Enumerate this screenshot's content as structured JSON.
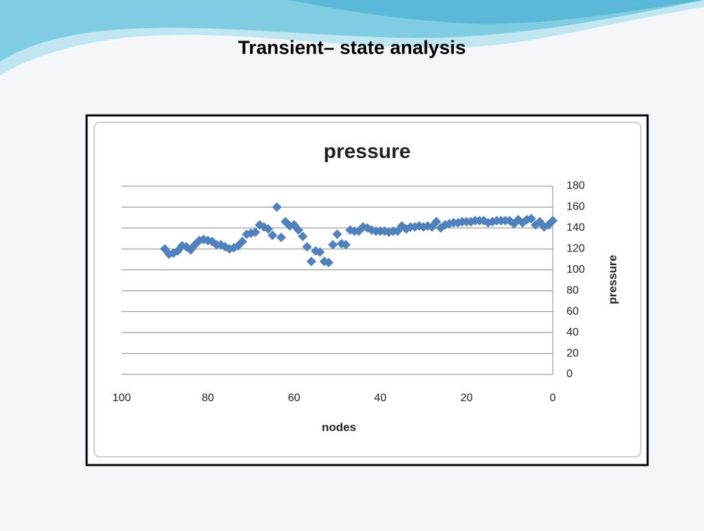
{
  "slide_title": "Transient– state analysis",
  "chart_data": {
    "type": "scatter",
    "title": "pressure",
    "x_label": "nodes",
    "y_label": "pressure",
    "color": "#4f81bd",
    "grid": true,
    "y_axis_side": "right",
    "x_reversed": true,
    "xlim": [
      100,
      0
    ],
    "xticks": [
      100,
      80,
      60,
      40,
      20,
      0
    ],
    "ylim": [
      0,
      180
    ],
    "yticks": [
      0,
      20,
      40,
      60,
      80,
      100,
      120,
      140,
      160,
      180
    ],
    "x": [
      90,
      89,
      88,
      87,
      86,
      85,
      84,
      83,
      82,
      81,
      80,
      79,
      78,
      77,
      76,
      75,
      74,
      73,
      72,
      71,
      70,
      69,
      68,
      67,
      66,
      65,
      64,
      63,
      62,
      61,
      60,
      59,
      58,
      57,
      56,
      55,
      54,
      53,
      52,
      51,
      50,
      49,
      48,
      47,
      46,
      45,
      44,
      43,
      42,
      41,
      40,
      39,
      38,
      37,
      36,
      35,
      34,
      33,
      32,
      31,
      30,
      29,
      28,
      27,
      26,
      25,
      24,
      23,
      22,
      21,
      20,
      19,
      18,
      17,
      16,
      15,
      14,
      13,
      12,
      11,
      10,
      9,
      8,
      7,
      6,
      5,
      4,
      3,
      2,
      1,
      0
    ],
    "values": [
      120,
      115,
      116,
      118,
      123,
      122,
      119,
      124,
      128,
      129,
      128,
      127,
      124,
      124,
      122,
      120,
      121,
      123,
      127,
      134,
      135,
      136,
      143,
      141,
      139,
      133,
      160,
      131,
      146,
      142,
      143,
      138,
      132,
      122,
      108,
      118,
      117,
      108,
      107,
      124,
      134,
      125,
      124,
      138,
      137,
      137,
      141,
      140,
      138,
      137,
      137,
      137,
      136,
      137,
      137,
      142,
      139,
      141,
      141,
      142,
      141,
      142,
      141,
      146,
      140,
      143,
      144,
      145,
      145,
      146,
      146,
      146,
      147,
      147,
      147,
      145,
      146,
      147,
      147,
      147,
      147,
      144,
      148,
      145,
      148,
      149,
      143,
      146,
      141,
      143,
      147
    ]
  }
}
